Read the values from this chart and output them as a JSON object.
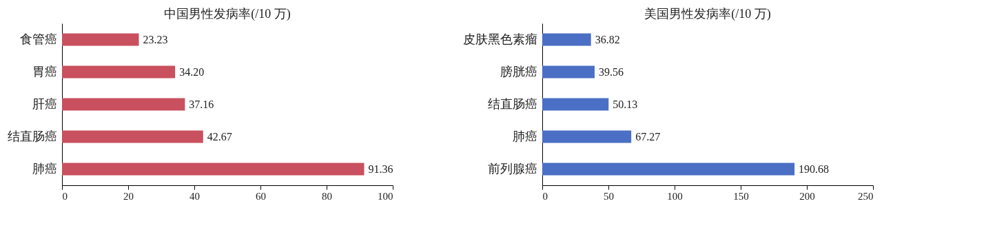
{
  "chart_data": [
    {
      "type": "bar",
      "orientation": "horizontal",
      "title": "中国男性发病率(/10 万)",
      "categories": [
        "食管癌",
        "胃癌",
        "肝癌",
        "结直肠癌",
        "肺癌"
      ],
      "values": [
        23.23,
        34.2,
        37.16,
        42.67,
        91.36
      ],
      "value_labels": [
        "23.23",
        "34.20",
        "37.16",
        "42.67",
        "91.36"
      ],
      "color": "#c9505f",
      "xlim": [
        0,
        100
      ],
      "xticks": [
        0,
        20,
        40,
        60,
        80,
        100
      ],
      "grid": false
    },
    {
      "type": "bar",
      "orientation": "horizontal",
      "title": "美国男性发病率(/10 万)",
      "categories": [
        "皮肤黑色素瘤",
        "膀胱癌",
        "结直肠癌",
        "肺癌",
        "前列腺癌"
      ],
      "values": [
        36.82,
        39.56,
        50.13,
        67.27,
        190.68
      ],
      "value_labels": [
        "36.82",
        "39.56",
        "50.13",
        "67.27",
        "190.68"
      ],
      "color": "#4a6fc4",
      "xlim": [
        0,
        250
      ],
      "xticks": [
        0,
        50,
        100,
        150,
        200,
        250
      ],
      "grid": false
    }
  ]
}
